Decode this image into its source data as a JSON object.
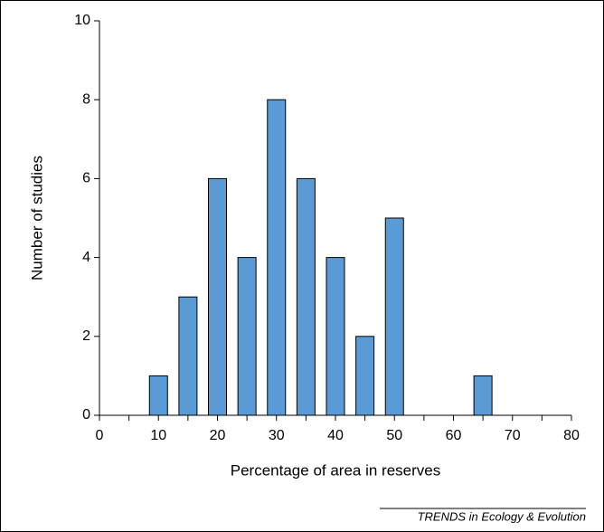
{
  "chart_data": {
    "type": "bar",
    "x": [
      10,
      15,
      20,
      25,
      30,
      35,
      40,
      45,
      50,
      65
    ],
    "values": [
      1,
      3,
      6,
      4,
      8,
      6,
      4,
      2,
      5,
      1
    ],
    "color": "#5b9bd5",
    "xlabel": "Percentage of area in reserves",
    "ylabel": "Number of studies",
    "xlim": [
      0,
      80
    ],
    "xticks": [
      0,
      10,
      20,
      30,
      40,
      50,
      60,
      70,
      80
    ],
    "ylim": [
      0,
      10
    ],
    "yticks": [
      0,
      2,
      4,
      6,
      8,
      10
    ],
    "grid": false
  },
  "footer": "TRENDS in Ecology & Evolution"
}
